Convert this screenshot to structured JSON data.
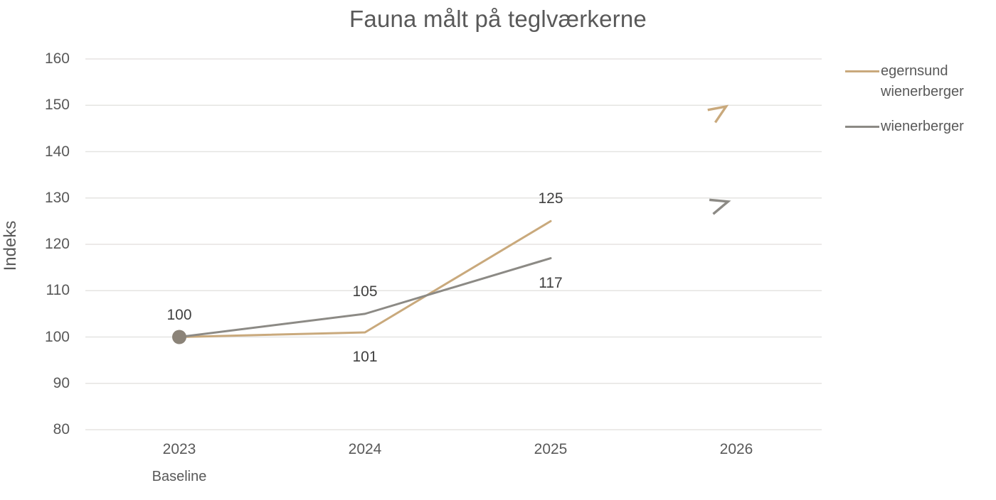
{
  "chart_data": {
    "type": "line",
    "title": "Fauna målt på teglværkerne",
    "ylabel": "Indeks",
    "xlabel": "",
    "ylim": [
      80,
      160
    ],
    "ytick_step": 10,
    "yticks": [
      160,
      150,
      140,
      130,
      120,
      110,
      100,
      90,
      80
    ],
    "categories": [
      "2023",
      "2024",
      "2025",
      "2026"
    ],
    "x_baseline_note": "Baseline",
    "grid": "horizontal-only",
    "legend_position": "right",
    "series": [
      {
        "name": "egernsund wienerberger",
        "color": "#C9A97C",
        "x": [
          "2023",
          "2024",
          "2025"
        ],
        "values": [
          100,
          101,
          125
        ],
        "point_labels": [
          null,
          "101",
          "125"
        ],
        "label_positions": [
          null,
          "below",
          "above"
        ],
        "trend_2026": {
          "symbol": "up-right-arrow",
          "approx_value": 148
        }
      },
      {
        "name": "wienerberger",
        "color": "#8C8A85",
        "x": [
          "2023",
          "2024",
          "2025"
        ],
        "values": [
          100,
          105,
          117
        ],
        "point_labels": [
          "100",
          "105",
          "117"
        ],
        "label_positions": [
          "above",
          "above",
          "below"
        ],
        "marker_first_point": {
          "shape": "circle",
          "color": "#8B8378"
        },
        "trend_2026": {
          "symbol": "up-right-arrow",
          "approx_value": 128
        }
      }
    ],
    "colors": {
      "grid": "#E5E4E2",
      "axis_text": "#595959",
      "data_label": "#3F3F3F",
      "title": "#595959"
    }
  }
}
